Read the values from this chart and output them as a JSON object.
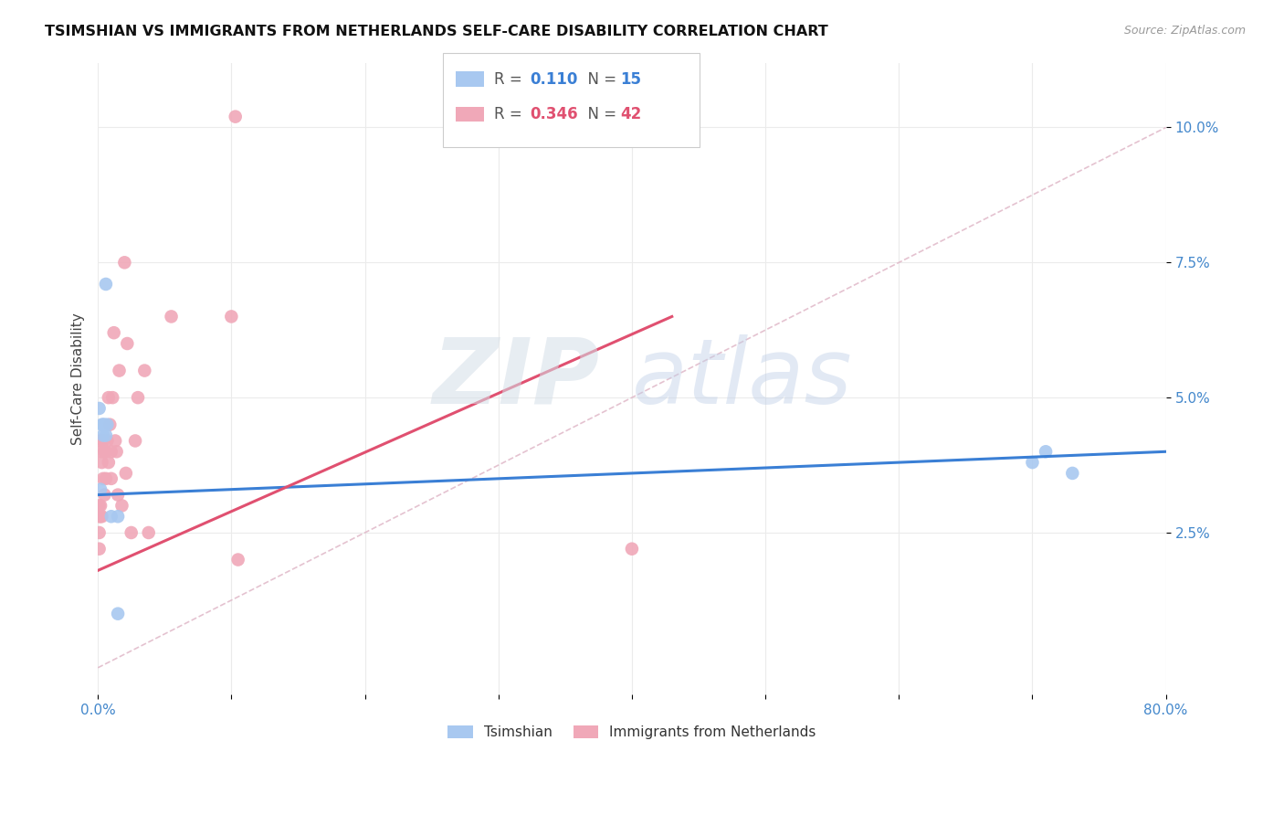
{
  "title": "TSIMSHIAN VS IMMIGRANTS FROM NETHERLANDS SELF-CARE DISABILITY CORRELATION CHART",
  "source": "Source: ZipAtlas.com",
  "ylabel": "Self-Care Disability",
  "watermark_zip": "ZIP",
  "watermark_atlas": "atlas",
  "legend_blue_r": "0.110",
  "legend_blue_n": "15",
  "legend_pink_r": "0.346",
  "legend_pink_n": "42",
  "legend_blue_label": "Tsimshian",
  "legend_pink_label": "Immigrants from Netherlands",
  "xlim": [
    0.0,
    0.8
  ],
  "ylim": [
    -0.005,
    0.112
  ],
  "yticks": [
    0.025,
    0.05,
    0.075,
    0.1
  ],
  "ytick_labels": [
    "2.5%",
    "5.0%",
    "7.5%",
    "10.0%"
  ],
  "xticks": [
    0.0,
    0.1,
    0.2,
    0.3,
    0.4,
    0.5,
    0.6,
    0.7,
    0.8
  ],
  "xtick_labels": [
    "0.0%",
    "",
    "",
    "",
    "",
    "",
    "",
    "",
    "80.0%"
  ],
  "blue_scatter_color": "#a8c8f0",
  "pink_scatter_color": "#f0a8b8",
  "blue_line_color": "#3a7fd5",
  "pink_line_color": "#e05070",
  "diag_line_color": "#e0b8c8",
  "grid_color": "#ebebeb",
  "background_color": "#ffffff",
  "tsimshian_x": [
    0.001,
    0.002,
    0.003,
    0.004,
    0.004,
    0.005,
    0.006,
    0.006,
    0.007,
    0.01,
    0.015,
    0.015,
    0.7,
    0.71,
    0.73
  ],
  "tsimshian_y": [
    0.048,
    0.033,
    0.045,
    0.043,
    0.045,
    0.045,
    0.043,
    0.071,
    0.045,
    0.028,
    0.01,
    0.028,
    0.038,
    0.04,
    0.036
  ],
  "netherlands_x": [
    0.001,
    0.001,
    0.001,
    0.001,
    0.002,
    0.002,
    0.002,
    0.003,
    0.003,
    0.003,
    0.004,
    0.004,
    0.005,
    0.005,
    0.006,
    0.006,
    0.007,
    0.008,
    0.008,
    0.009,
    0.01,
    0.01,
    0.011,
    0.012,
    0.013,
    0.014,
    0.015,
    0.016,
    0.018,
    0.02,
    0.021,
    0.022,
    0.025,
    0.028,
    0.03,
    0.035,
    0.038,
    0.055,
    0.1,
    0.105,
    0.4,
    0.103
  ],
  "netherlands_y": [
    0.03,
    0.028,
    0.025,
    0.022,
    0.042,
    0.03,
    0.028,
    0.04,
    0.038,
    0.028,
    0.042,
    0.035,
    0.04,
    0.032,
    0.04,
    0.035,
    0.042,
    0.05,
    0.038,
    0.045,
    0.04,
    0.035,
    0.05,
    0.062,
    0.042,
    0.04,
    0.032,
    0.055,
    0.03,
    0.075,
    0.036,
    0.06,
    0.025,
    0.042,
    0.05,
    0.055,
    0.025,
    0.065,
    0.065,
    0.02,
    0.022,
    0.102
  ],
  "blue_line_x": [
    0.0,
    0.8
  ],
  "blue_line_y": [
    0.032,
    0.04
  ],
  "pink_line_x": [
    0.0,
    0.43
  ],
  "pink_line_y": [
    0.018,
    0.065
  ],
  "diag_line_x": [
    0.0,
    0.8
  ],
  "diag_line_y": [
    0.0,
    0.1
  ]
}
